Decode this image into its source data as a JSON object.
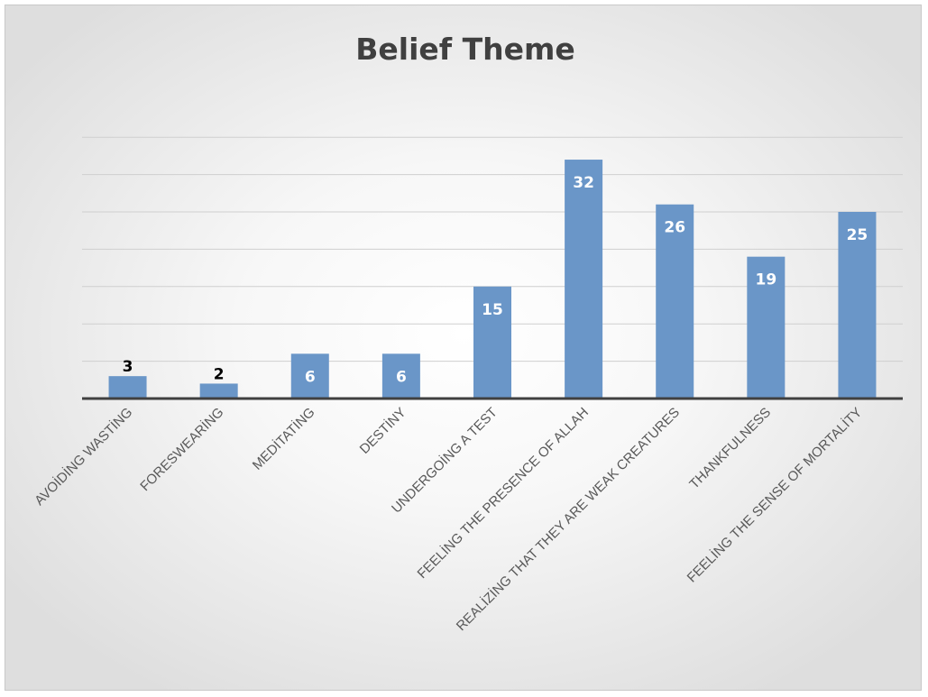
{
  "chart_data": {
    "type": "bar",
    "title": "Belief Theme",
    "categories": [
      "AVOİDİNG WASTİNG",
      "FORESWEARİNG",
      "MEDİTATİNG",
      "DESTİNY",
      "UNDERGOİNG A TEST",
      "FEELİNG THE PRESENCE OF ALLAH",
      "REALİZİNG THAT THEY ARE WEAK CREATURES",
      "THANKFULNESS",
      "FEELİNG THE SENSE OF MORTALİTY"
    ],
    "values": [
      3,
      2,
      6,
      6,
      15,
      32,
      26,
      19,
      25
    ],
    "ylim": [
      0,
      35
    ],
    "grid": true,
    "legend": "none",
    "colors": {
      "bar": "#6a96c8",
      "label_inside": "#ffffff",
      "label_above": "#000000"
    }
  }
}
